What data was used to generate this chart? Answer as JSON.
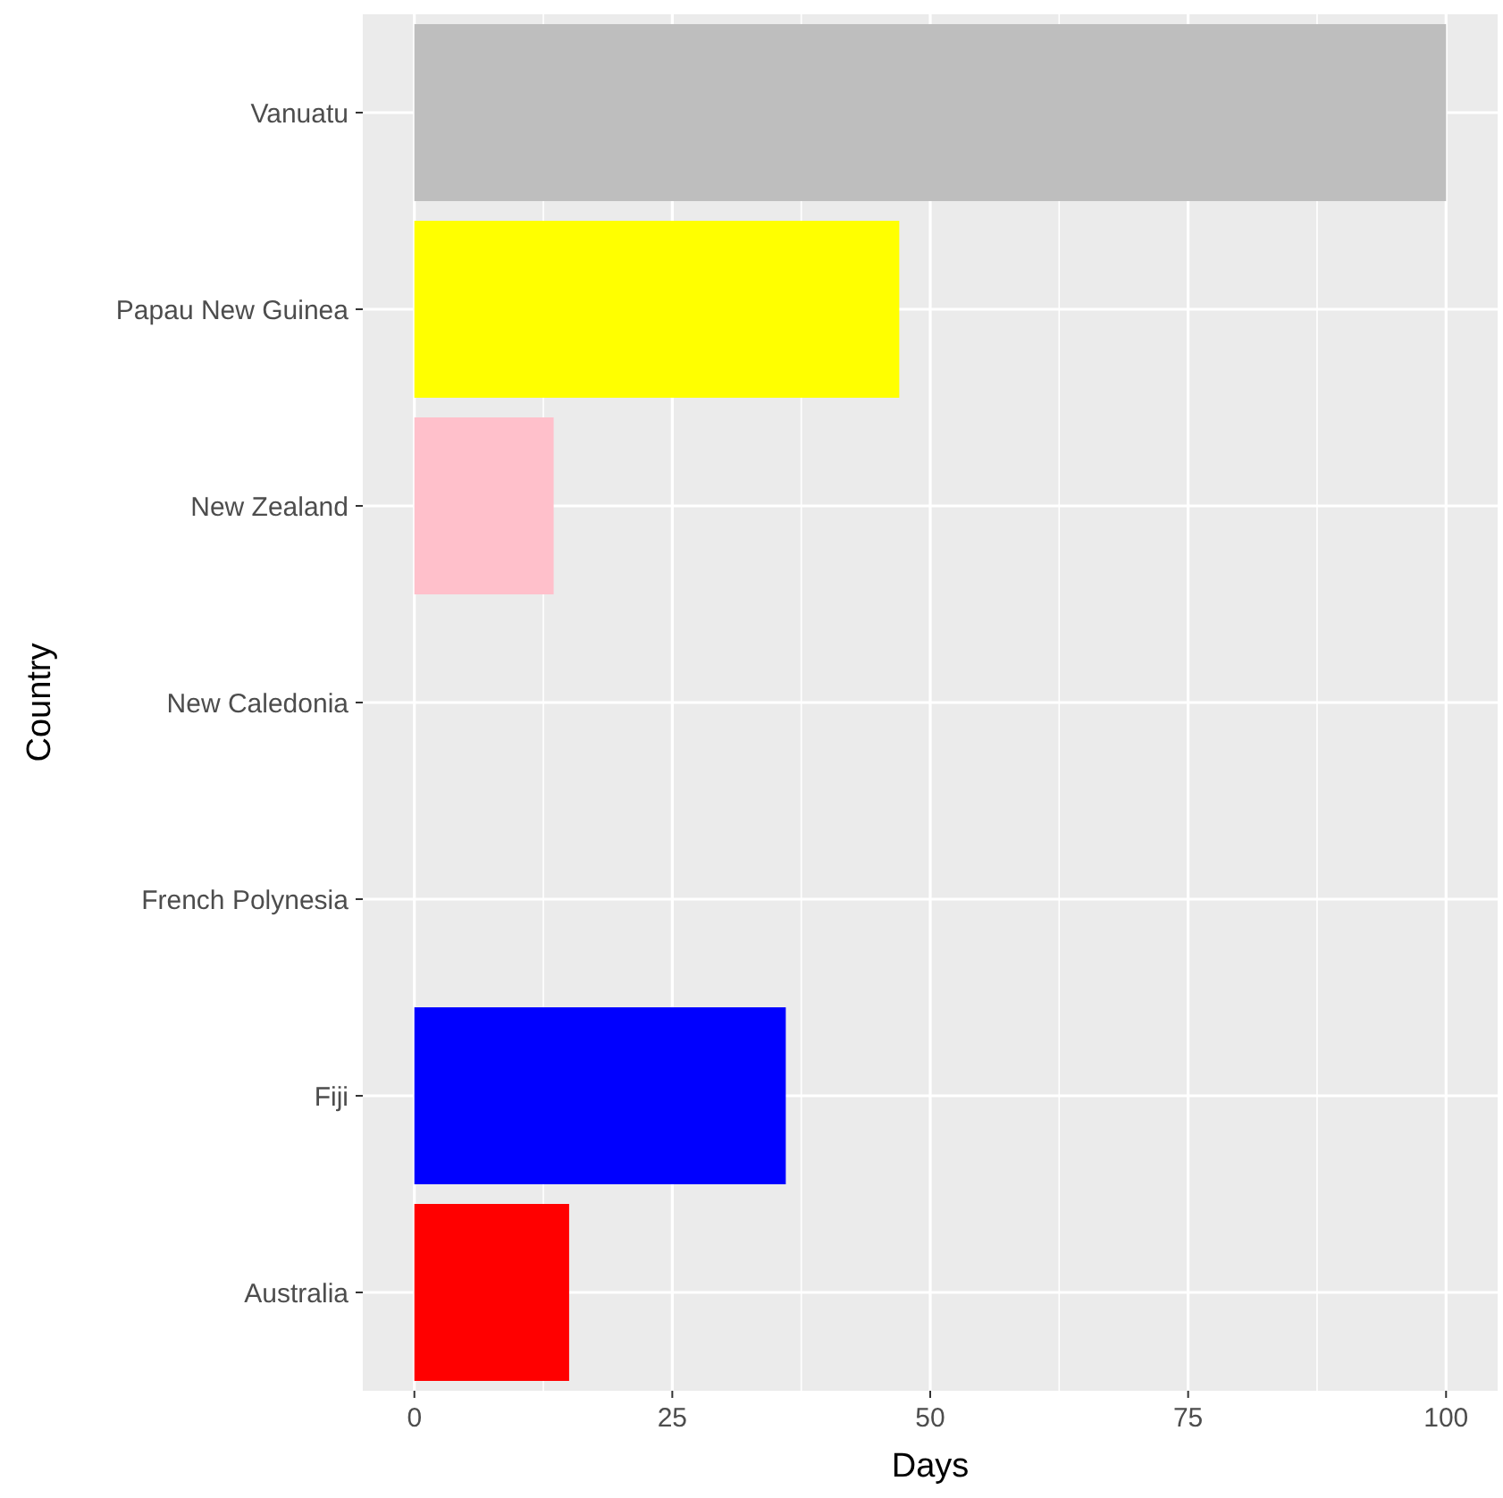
{
  "chart_data": {
    "type": "bar",
    "orientation": "horizontal",
    "xlabel": "Days",
    "ylabel": "Country",
    "categories": [
      "Vanuatu",
      "Papau New Guinea",
      "New Zealand",
      "New Caledonia",
      "French Polynesia",
      "Fiji",
      "Australia"
    ],
    "values": [
      100,
      47,
      13.5,
      null,
      null,
      36,
      15
    ],
    "colors": [
      "#bebebe",
      "#ffff00",
      "#ffc0cb",
      null,
      null,
      "#0000ff",
      "#ff0000"
    ],
    "xlim": [
      -5,
      105
    ],
    "xticks": [
      0,
      25,
      50,
      75,
      100
    ],
    "grid": true
  }
}
